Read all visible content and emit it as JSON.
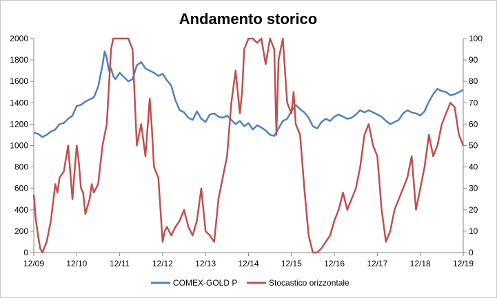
{
  "chart_data": {
    "type": "line",
    "title": "Andamento storico",
    "xlabel": "",
    "ylabel": "",
    "x_ticks": [
      "12/09",
      "12/10",
      "12/11",
      "12/12",
      "12/13",
      "12/14",
      "12/15",
      "12/16",
      "12/17",
      "12/18",
      "12/19"
    ],
    "y_left": {
      "min": 0,
      "max": 2000,
      "ticks": [
        0,
        200,
        400,
        600,
        800,
        1000,
        1200,
        1400,
        1600,
        1800,
        2000
      ]
    },
    "y_right": {
      "min": 0,
      "max": 100,
      "ticks": [
        0,
        10,
        20,
        30,
        40,
        50,
        60,
        70,
        80,
        90,
        100
      ]
    },
    "grid": false,
    "legend_position": "bottom",
    "series": [
      {
        "name": "COMEX-GOLD P",
        "axis": "left",
        "color": "#4f81bd",
        "x": [
          0,
          0.1,
          0.2,
          0.3,
          0.4,
          0.5,
          0.6,
          0.7,
          0.8,
          0.9,
          1.0,
          1.1,
          1.2,
          1.3,
          1.4,
          1.5,
          1.6,
          1.65,
          1.7,
          1.75,
          1.8,
          1.85,
          1.9,
          2.0,
          2.1,
          2.2,
          2.3,
          2.4,
          2.5,
          2.6,
          2.7,
          2.8,
          2.9,
          3.0,
          3.1,
          3.2,
          3.3,
          3.4,
          3.5,
          3.6,
          3.7,
          3.8,
          3.9,
          4.0,
          4.1,
          4.2,
          4.3,
          4.4,
          4.5,
          4.6,
          4.7,
          4.8,
          4.9,
          5.0,
          5.1,
          5.2,
          5.3,
          5.4,
          5.5,
          5.6,
          5.7,
          5.8,
          5.9,
          6.0,
          6.1,
          6.2,
          6.3,
          6.4,
          6.5,
          6.6,
          6.7,
          6.8,
          6.9,
          7.0,
          7.1,
          7.2,
          7.3,
          7.4,
          7.5,
          7.6,
          7.7,
          7.8,
          7.9,
          8.0,
          8.1,
          8.2,
          8.3,
          8.4,
          8.5,
          8.6,
          8.7,
          8.8,
          8.9,
          9.0,
          9.1,
          9.2,
          9.3,
          9.4,
          9.5,
          9.6,
          9.7,
          9.8,
          9.9,
          10.0
        ],
        "values": [
          1120,
          1110,
          1080,
          1100,
          1130,
          1150,
          1200,
          1210,
          1250,
          1280,
          1370,
          1380,
          1410,
          1430,
          1450,
          1550,
          1750,
          1880,
          1820,
          1700,
          1720,
          1650,
          1620,
          1680,
          1640,
          1600,
          1620,
          1750,
          1780,
          1720,
          1700,
          1680,
          1650,
          1670,
          1610,
          1560,
          1420,
          1330,
          1310,
          1260,
          1240,
          1320,
          1250,
          1220,
          1290,
          1300,
          1270,
          1260,
          1280,
          1240,
          1200,
          1230,
          1180,
          1210,
          1150,
          1190,
          1170,
          1140,
          1100,
          1090,
          1160,
          1230,
          1250,
          1320,
          1380,
          1340,
          1310,
          1260,
          1180,
          1160,
          1220,
          1250,
          1230,
          1270,
          1290,
          1270,
          1250,
          1260,
          1290,
          1330,
          1310,
          1330,
          1310,
          1290,
          1270,
          1230,
          1200,
          1220,
          1240,
          1300,
          1330,
          1310,
          1300,
          1280,
          1320,
          1410,
          1480,
          1530,
          1510,
          1500,
          1470,
          1480,
          1500,
          1520
        ]
      },
      {
        "name": "Stocastico orizzontale",
        "axis": "right",
        "color": "#c0504d",
        "x": [
          0,
          0.05,
          0.1,
          0.15,
          0.2,
          0.3,
          0.4,
          0.5,
          0.55,
          0.6,
          0.7,
          0.8,
          0.9,
          0.95,
          1.0,
          1.05,
          1.1,
          1.15,
          1.2,
          1.3,
          1.35,
          1.4,
          1.5,
          1.6,
          1.7,
          1.8,
          1.85,
          1.9,
          2.0,
          2.1,
          2.2,
          2.3,
          2.4,
          2.5,
          2.6,
          2.7,
          2.75,
          2.8,
          2.9,
          3.0,
          3.05,
          3.1,
          3.2,
          3.3,
          3.4,
          3.5,
          3.6,
          3.7,
          3.8,
          3.9,
          4.0,
          4.1,
          4.2,
          4.3,
          4.4,
          4.5,
          4.6,
          4.7,
          4.8,
          4.85,
          4.9,
          5.0,
          5.1,
          5.2,
          5.3,
          5.4,
          5.5,
          5.6,
          5.65,
          5.7,
          5.8,
          5.9,
          6.0,
          6.05,
          6.1,
          6.2,
          6.3,
          6.4,
          6.5,
          6.6,
          6.7,
          6.8,
          6.9,
          7.0,
          7.1,
          7.2,
          7.3,
          7.4,
          7.5,
          7.6,
          7.7,
          7.8,
          7.9,
          8.0,
          8.1,
          8.2,
          8.3,
          8.4,
          8.5,
          8.6,
          8.7,
          8.8,
          8.9,
          9.0,
          9.1,
          9.2,
          9.3,
          9.4,
          9.5,
          9.6,
          9.7,
          9.8,
          9.9,
          10.0
        ],
        "values": [
          27,
          15,
          8,
          2,
          0,
          5,
          15,
          32,
          28,
          35,
          38,
          50,
          25,
          38,
          50,
          42,
          30,
          28,
          18,
          25,
          32,
          28,
          32,
          50,
          60,
          95,
          100,
          100,
          100,
          100,
          100,
          95,
          50,
          60,
          45,
          72,
          58,
          40,
          35,
          5,
          10,
          12,
          8,
          12,
          15,
          20,
          12,
          8,
          15,
          30,
          10,
          8,
          5,
          25,
          35,
          45,
          70,
          85,
          65,
          75,
          95,
          100,
          100,
          98,
          100,
          88,
          100,
          95,
          55,
          90,
          100,
          70,
          65,
          75,
          60,
          55,
          30,
          8,
          0,
          0,
          2,
          5,
          8,
          15,
          20,
          28,
          20,
          25,
          30,
          40,
          55,
          60,
          50,
          45,
          20,
          5,
          10,
          20,
          25,
          30,
          35,
          45,
          20,
          30,
          40,
          55,
          45,
          50,
          60,
          65,
          70,
          68,
          55,
          50
        ]
      }
    ]
  }
}
